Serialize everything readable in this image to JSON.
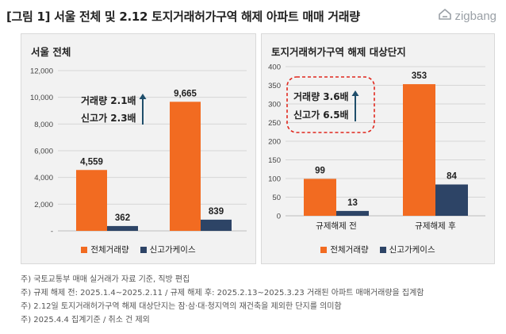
{
  "title": "[그림 1] 서울 전체 및 2.12 토지거래허가구역 해제 아파트 매매 거래량",
  "logo": {
    "icon": "zigbang-logo-icon",
    "text": "zigbang"
  },
  "colors": {
    "total": "#f26b21",
    "new_high": "#2d4466",
    "highlight_border": "#e0281e",
    "arrow": "#1f4e6b",
    "panel_bg": "#f2f2f2"
  },
  "legend": {
    "total_label": "전체거래량",
    "new_high_label": "신고가케이스"
  },
  "chart_data": [
    {
      "type": "bar",
      "title": "서울 전체",
      "categories": [
        ""
      ],
      "series": [
        {
          "name": "전체거래량",
          "values": [
            4559
          ]
        },
        {
          "name": "신고가케이스",
          "values": [
            362
          ]
        }
      ],
      "second_group": {
        "series": [
          {
            "name": "전체거래량",
            "values": [
              9665
            ]
          },
          {
            "name": "신고가케이스",
            "values": [
              839
            ]
          }
        ]
      },
      "value_labels": [
        "4,559",
        "362",
        "9,665",
        "839"
      ],
      "yticks": [
        "-",
        "2,000",
        "4,000",
        "6,000",
        "8,000",
        "10,000",
        "12,000"
      ],
      "ylim": [
        0,
        12000
      ],
      "annotation": [
        "거래량 2.1배",
        "신고가 2.3배"
      ],
      "grid": true,
      "legend_position": "bottom"
    },
    {
      "type": "bar",
      "title": "토지거래허가구역 해제 대상단지",
      "categories": [
        "규제해제 전",
        "규제해제 후"
      ],
      "series": [
        {
          "name": "전체거래량",
          "values": [
            99,
            353
          ]
        },
        {
          "name": "신고가케이스",
          "values": [
            13,
            84
          ]
        }
      ],
      "value_labels": [
        "99",
        "13",
        "353",
        "84"
      ],
      "yticks": [
        "0",
        "50",
        "100",
        "150",
        "200",
        "250",
        "300",
        "350",
        "400"
      ],
      "ylim": [
        0,
        400
      ],
      "annotation": [
        "거래량 3.6배",
        "신고가 6.5배"
      ],
      "grid": true,
      "legend_position": "bottom"
    }
  ],
  "notes": [
    "주) 국토교통부 매매 실거래가 자료 기준, 직방 편집",
    "주) 규제 해제 전: 2025.1.4~2025.2.11 / 규제 해제 후: 2025.2.13~2025.3.23 거래된 아파트 매매거래량을 집계함",
    "주) 2.12일 토지거래허가구역 해제 대상단지는  잠·삼·대·청지역의 재건축을 제외한 단지를 의미함",
    "주) 2025.4.4 집계기준 / 취소 건 제외"
  ]
}
